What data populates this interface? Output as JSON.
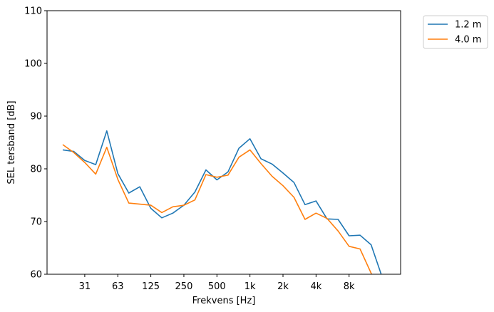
{
  "chart_data": {
    "type": "line",
    "title": "",
    "xlabel": "Frekvens [Hz]",
    "ylabel": "SEL tersband [dB]",
    "x": [
      20,
      25,
      31.5,
      40,
      50,
      63,
      80,
      100,
      125,
      160,
      200,
      250,
      315,
      400,
      500,
      630,
      800,
      1000,
      1250,
      1600,
      2000,
      2500,
      3150,
      4000,
      5000,
      6300,
      8000,
      10000,
      12500,
      16000
    ],
    "x_tick_labels": [
      "31",
      "63",
      "125",
      "250",
      "500",
      "1k",
      "2k",
      "4k",
      "8k"
    ],
    "ylim": [
      60,
      110
    ],
    "y_ticks": [
      60,
      70,
      80,
      90,
      100,
      110
    ],
    "grid": false,
    "legend_position": "outside-top-right",
    "series": [
      {
        "name": "1.2 m",
        "color": "#1f77b4",
        "values": [
          83.6,
          83.3,
          81.6,
          80.8,
          87.2,
          79.1,
          75.4,
          76.6,
          72.5,
          70.7,
          71.6,
          73.1,
          75.6,
          79.8,
          77.9,
          79.4,
          83.9,
          85.7,
          81.9,
          80.9,
          79.2,
          77.4,
          73.2,
          73.9,
          70.5,
          70.4,
          67.3,
          67.4,
          65.6,
          59.5
        ]
      },
      {
        "name": "4.0 m",
        "color": "#ff7f0e",
        "values": [
          84.6,
          83.1,
          81.2,
          79.0,
          84.1,
          78.0,
          73.5,
          73.3,
          73.1,
          71.7,
          72.8,
          73.1,
          74.1,
          78.9,
          78.4,
          78.8,
          82.2,
          83.6,
          81.0,
          78.6,
          76.8,
          74.6,
          70.4,
          71.6,
          70.6,
          68.2,
          65.3,
          64.8,
          60.2,
          55.0
        ]
      }
    ]
  }
}
